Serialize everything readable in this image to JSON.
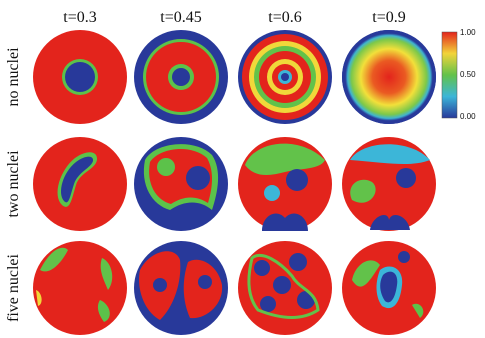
{
  "figure": {
    "columns": [
      "t=0.3",
      "t=0.45",
      "t=0.6",
      "t=0.9"
    ],
    "rows": [
      "no nuclei",
      "two nuclei",
      "five nuclei"
    ],
    "colorbar": {
      "ticks": [
        "1.00",
        "0.50",
        "0.00"
      ]
    }
  }
}
